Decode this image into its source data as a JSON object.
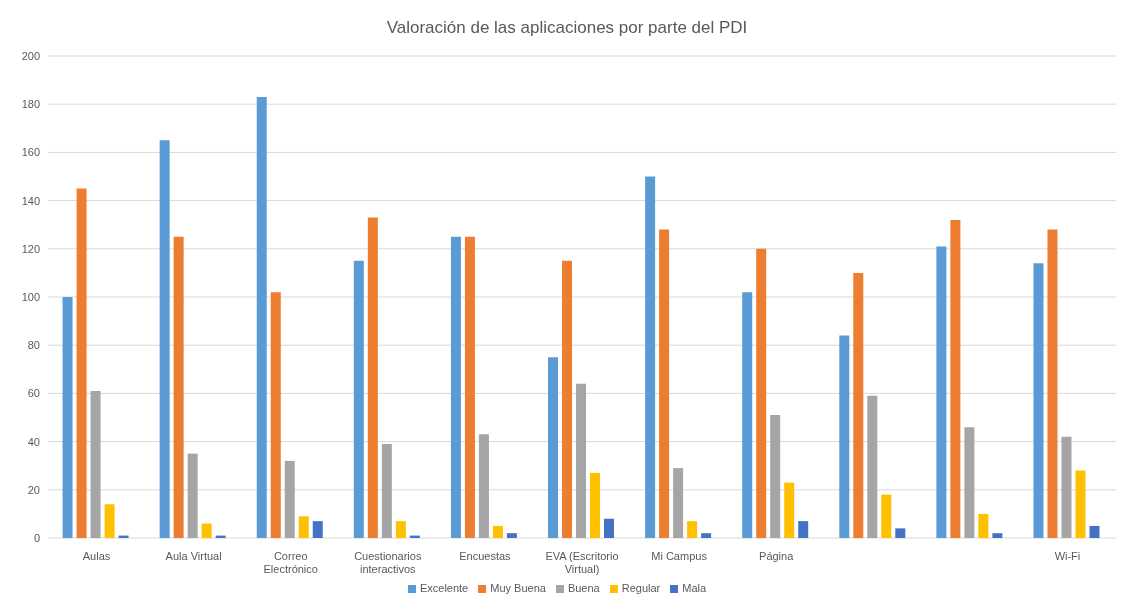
{
  "chart_data": {
    "type": "bar",
    "title": "Valoración de las aplicaciones por parte del PDI",
    "categories": [
      "Aulas",
      "Aula Virtual",
      "Correo Electrónico",
      "Cuestionarios interactivos",
      "Encuestas",
      "EVA (Escritorio Virtual)",
      "Mi Campus",
      "Página",
      null,
      null,
      "Wi-Fi"
    ],
    "series": [
      {
        "name": "Excelente",
        "color": "#5b9bd5",
        "values": [
          100,
          165,
          183,
          115,
          125,
          75,
          150,
          102,
          84,
          121,
          114
        ]
      },
      {
        "name": "Muy Buena",
        "color": "#ed7d31",
        "values": [
          145,
          125,
          102,
          133,
          125,
          115,
          128,
          120,
          110,
          132,
          128
        ]
      },
      {
        "name": "Buena",
        "color": "#a5a5a5",
        "values": [
          61,
          35,
          32,
          39,
          43,
          64,
          29,
          51,
          59,
          46,
          42
        ]
      },
      {
        "name": "Regular",
        "color": "#ffc000",
        "values": [
          14,
          6,
          9,
          7,
          5,
          27,
          7,
          23,
          18,
          10,
          28
        ]
      },
      {
        "name": "Mala",
        "color": "#4472c4",
        "values": [
          1,
          1,
          7,
          1,
          2,
          8,
          2,
          7,
          4,
          2,
          5
        ]
      }
    ],
    "ylim": [
      0,
      200
    ],
    "yticks": [
      0,
      20,
      40,
      60,
      80,
      100,
      120,
      140,
      160,
      180,
      200
    ],
    "grid": "y",
    "legend": "bottom"
  }
}
